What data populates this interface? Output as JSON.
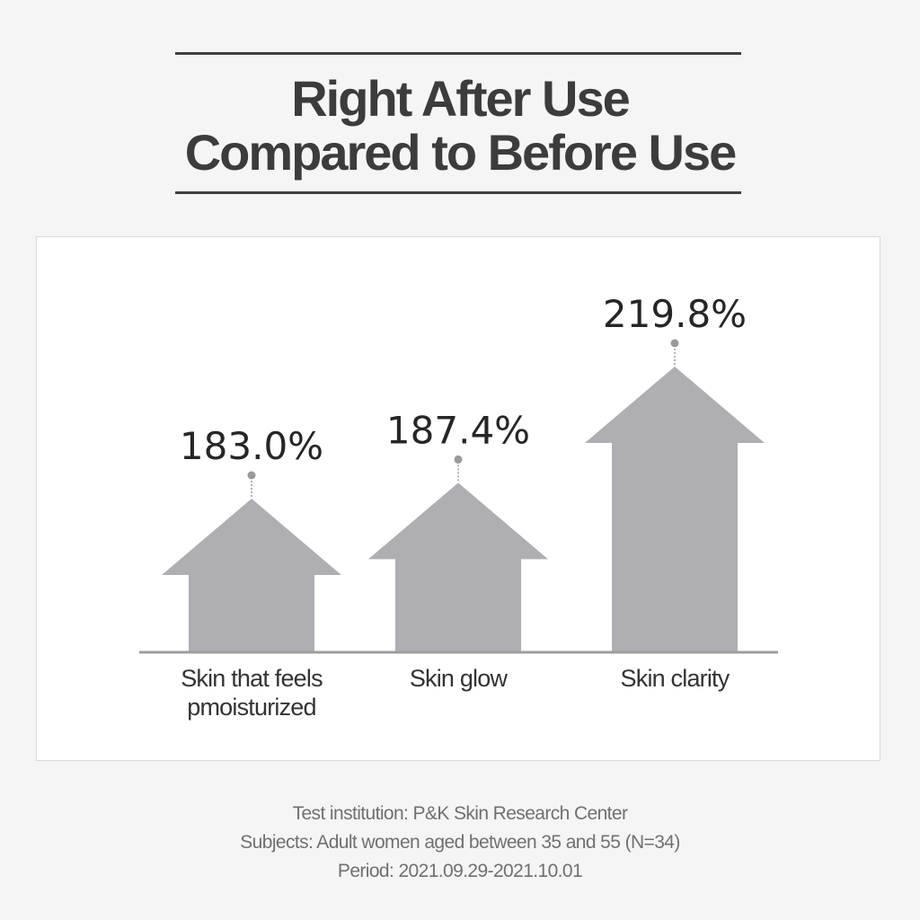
{
  "header": {
    "title_line1": "Right After Use",
    "title_line2": "Compared to Before Use"
  },
  "chart_data": {
    "type": "bar",
    "categories": [
      "Skin that feels pmoisturized",
      "Skin glow",
      "Skin clarity"
    ],
    "category_lines": [
      [
        "Skin that feels",
        "pmoisturized"
      ],
      [
        "Skin glow"
      ],
      [
        "Skin clarity"
      ]
    ],
    "values": [
      183.0,
      187.4,
      219.8
    ],
    "value_labels": [
      "183.0%",
      "187.4%",
      "219.8%"
    ],
    "title": "",
    "xlabel": "",
    "ylabel": "",
    "mark_shape": "arrow",
    "mark_color": "#aeaeb3",
    "grid": false,
    "legend": "none"
  },
  "footnotes": {
    "institution": "Test institution: P&K Skin Research Center",
    "subjects": "Subjects: Adult women aged between 35 and 55 (N=34)",
    "period": "Period: 2021.09.29-2021.10.01"
  }
}
